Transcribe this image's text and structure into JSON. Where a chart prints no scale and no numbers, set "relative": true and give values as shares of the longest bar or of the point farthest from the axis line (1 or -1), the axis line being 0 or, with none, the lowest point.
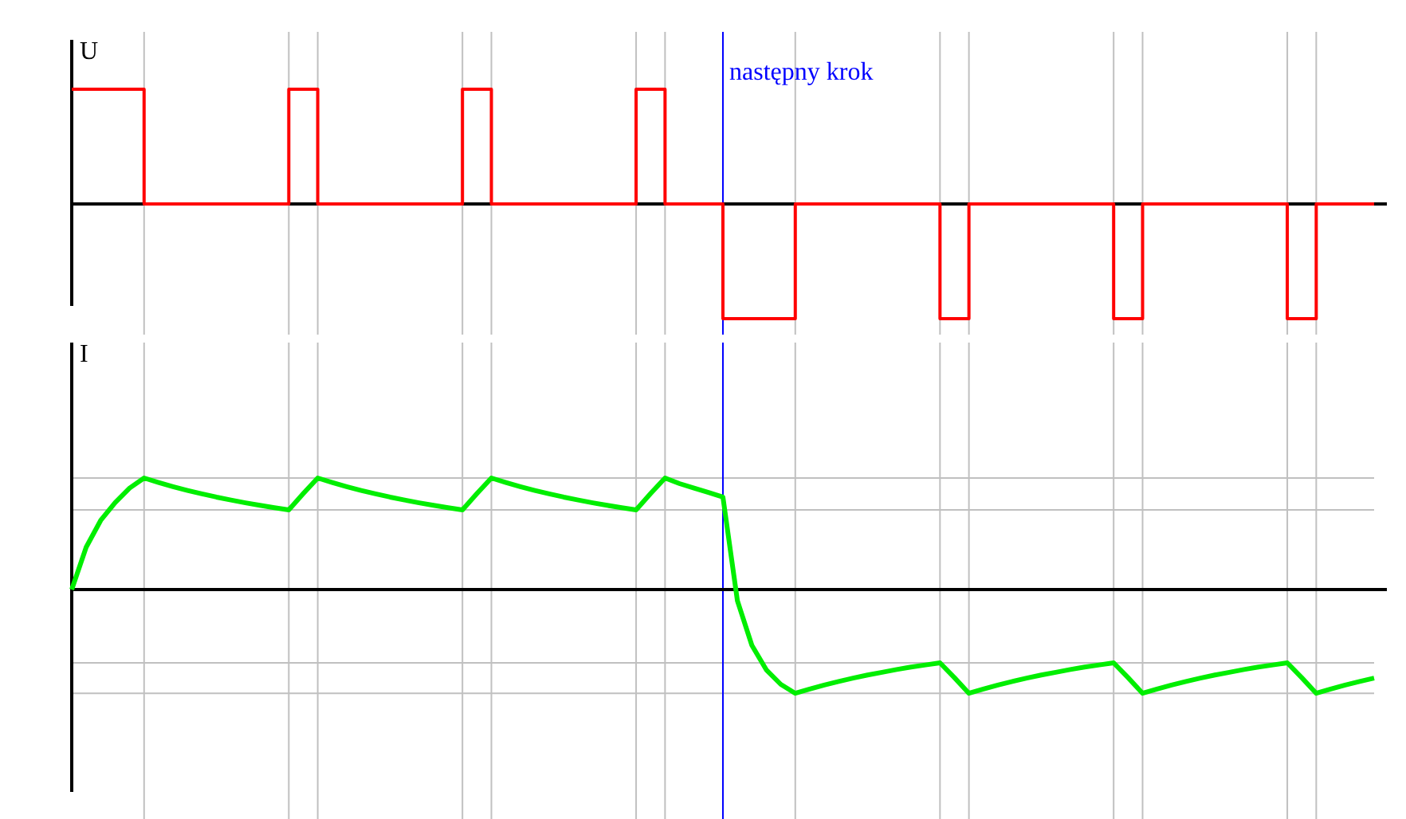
{
  "chart_data": [
    {
      "type": "step",
      "ylabel": "U",
      "relative": true,
      "grid": true,
      "annotations": [
        "następny krok"
      ],
      "categories": [
        null,
        null,
        null,
        null,
        null,
        null,
        null,
        null,
        null,
        null,
        null,
        null,
        null,
        null,
        null,
        null,
        null,
        null,
        null,
        null,
        null,
        null,
        null,
        null,
        null,
        null,
        null,
        null,
        null,
        null,
        null,
        null,
        null,
        null,
        null,
        null,
        null,
        null,
        null,
        null,
        null,
        null,
        null,
        null,
        null,
        null,
        null,
        null,
        null,
        null,
        null,
        null,
        null,
        null,
        null,
        null,
        null,
        null,
        null,
        null,
        null,
        null,
        null,
        null,
        null,
        null,
        null,
        null,
        null,
        null,
        null,
        null,
        null,
        null,
        null,
        null,
        null,
        null,
        null,
        null,
        null,
        null,
        null,
        null,
        null,
        null,
        null,
        null,
        null,
        null,
        null
      ],
      "series": [
        {
          "color": "#ff0000",
          "values": [
            1,
            1,
            1,
            1,
            1,
            0,
            0,
            0,
            0,
            0,
            0,
            0,
            0,
            0,
            0,
            1,
            1,
            0,
            0,
            0,
            0,
            0,
            0,
            0,
            0,
            0,
            0,
            1,
            1,
            0,
            0,
            0,
            0,
            0,
            0,
            0,
            0,
            0,
            0,
            1,
            1,
            0,
            0,
            0,
            0,
            -1,
            -1,
            -1,
            -1,
            -1,
            0,
            0,
            0,
            0,
            0,
            0,
            0,
            0,
            0,
            0,
            -1,
            -1,
            0,
            0,
            0,
            0,
            0,
            0,
            0,
            0,
            0,
            0,
            -1,
            -1,
            0,
            0,
            0,
            0,
            0,
            0,
            0,
            0,
            0,
            0,
            -1,
            -1,
            0,
            0,
            0,
            0,
            0
          ]
        }
      ]
    },
    {
      "type": "line",
      "ylabel": "I",
      "relative": true,
      "grid": true,
      "categories": [
        null,
        null,
        null,
        null,
        null,
        null,
        null,
        null,
        null,
        null,
        null,
        null,
        null,
        null,
        null,
        null,
        null,
        null,
        null,
        null,
        null,
        null,
        null,
        null,
        null,
        null,
        null,
        null,
        null,
        null,
        null,
        null,
        null,
        null,
        null,
        null,
        null,
        null,
        null,
        null,
        null,
        null,
        null,
        null,
        null,
        null,
        null,
        null,
        null,
        null,
        null,
        null,
        null,
        null,
        null,
        null,
        null,
        null,
        null,
        null,
        null,
        null,
        null,
        null,
        null,
        null,
        null,
        null,
        null,
        null,
        null,
        null,
        null,
        null,
        null,
        null,
        null,
        null,
        null,
        null,
        null,
        null,
        null,
        null,
        null,
        null,
        null,
        null,
        null,
        null,
        null
      ],
      "series": [
        {
          "color": "#00ee00",
          "values": [
            0,
            0.38,
            0.62,
            0.78,
            0.91,
            1,
            0.96,
            0.923,
            0.889,
            0.858,
            0.829,
            0.803,
            0.778,
            0.755,
            0.734,
            0.714,
            0.86,
            1,
            0.96,
            0.923,
            0.889,
            0.858,
            0.829,
            0.803,
            0.778,
            0.755,
            0.734,
            0.714,
            0.86,
            1,
            0.96,
            0.923,
            0.889,
            0.858,
            0.829,
            0.803,
            0.778,
            0.755,
            0.734,
            0.714,
            0.86,
            1,
            0.95,
            0.91,
            0.87,
            0.83,
            -0.1,
            -0.5,
            -0.72,
            -0.85,
            -0.93,
            -0.892,
            -0.856,
            -0.824,
            -0.794,
            -0.766,
            -0.742,
            -0.717,
            -0.695,
            -0.676,
            -0.657,
            -0.79,
            -0.93,
            -0.892,
            -0.856,
            -0.824,
            -0.794,
            -0.766,
            -0.742,
            -0.717,
            -0.695,
            -0.676,
            -0.657,
            -0.79,
            -0.93,
            -0.892,
            -0.856,
            -0.824,
            -0.794,
            -0.766,
            -0.742,
            -0.717,
            -0.695,
            -0.676,
            -0.657,
            -0.79,
            -0.93,
            -0.892,
            -0.856,
            -0.824,
            -0.794
          ]
        }
      ]
    }
  ]
}
